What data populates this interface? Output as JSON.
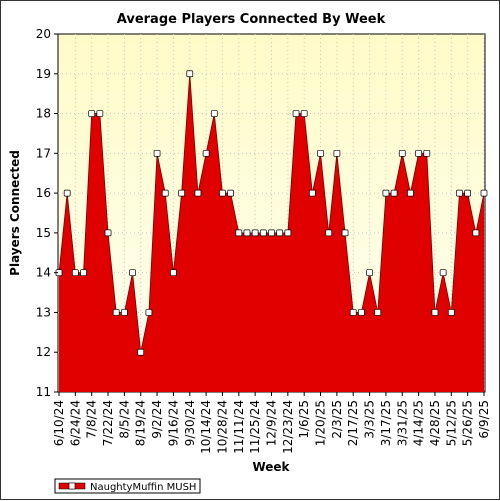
{
  "chart_data": {
    "type": "area",
    "title": "Average Players Connected By Week",
    "xlabel": "Week",
    "ylabel": "Players Connected",
    "ylim": [
      11,
      20
    ],
    "y_ticks": [
      11,
      12,
      13,
      14,
      15,
      16,
      17,
      18,
      19,
      20
    ],
    "grid": true,
    "legend_position": "bottom-left",
    "x_tick_labels": [
      "6/10/24",
      "6/24/24",
      "7/8/24",
      "7/22/24",
      "8/5/24",
      "8/19/24",
      "9/2/24",
      "9/16/24",
      "9/30/24",
      "10/14/24",
      "10/28/24",
      "11/11/24",
      "11/25/24",
      "12/9/24",
      "12/23/24",
      "1/6/25",
      "1/20/25",
      "2/3/25",
      "2/17/25",
      "3/3/25",
      "3/17/25",
      "3/31/25",
      "4/14/25",
      "4/28/25",
      "5/12/25",
      "5/26/25",
      "6/9/25"
    ],
    "series": [
      {
        "name": "NaughtyMuffin MUSH",
        "color": "#e00000",
        "values": [
          14,
          16,
          14,
          14,
          18,
          18,
          15,
          13,
          13,
          14,
          12,
          13,
          17,
          16,
          14,
          16,
          19,
          16,
          17,
          18,
          16,
          16,
          15,
          15,
          15,
          15,
          15,
          15,
          15,
          18,
          18,
          16,
          17,
          15,
          17,
          15,
          13,
          13,
          14,
          13,
          16,
          16,
          17,
          16,
          17,
          17,
          13,
          14,
          13,
          16,
          16,
          15,
          16
        ]
      }
    ]
  }
}
